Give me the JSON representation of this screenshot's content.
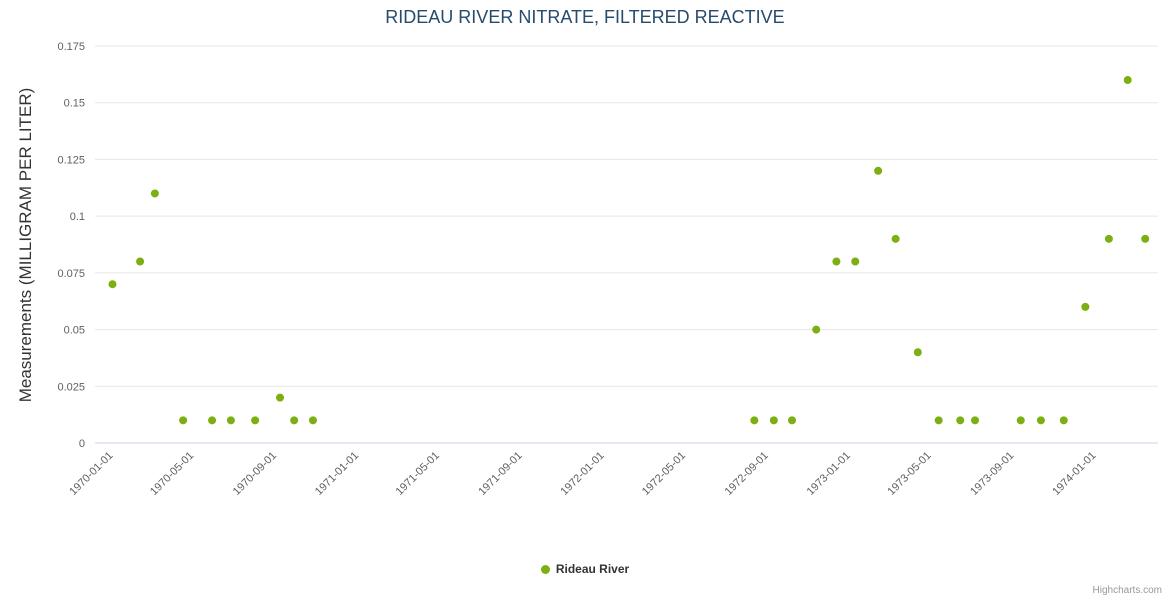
{
  "title": "RIDEAU RIVER NITRATE, FILTERED REACTIVE",
  "credits": {
    "label": "Highcharts.com"
  },
  "legend": {
    "items": [
      {
        "label": "Rideau River",
        "color": "#7cb012"
      }
    ]
  },
  "chart_data": {
    "type": "scatter",
    "title": "RIDEAU RIVER NITRATE, FILTERED REACTIVE",
    "xlabel": "",
    "ylabel": "Measurements (MILLIGRAM PER LITER)",
    "ylim": [
      0,
      0.175
    ],
    "y_ticks": [
      0,
      0.025,
      0.05,
      0.075,
      0.1,
      0.125,
      0.15,
      0.175
    ],
    "x_ticks": [
      "1970-01-01",
      "1970-05-01",
      "1970-09-01",
      "1971-01-01",
      "1971-05-01",
      "1971-09-01",
      "1972-01-01",
      "1972-05-01",
      "1972-09-01",
      "1973-01-01",
      "1973-05-01",
      "1973-09-01",
      "1974-01-01"
    ],
    "xlim": [
      "1969-12-09",
      "1974-04-07"
    ],
    "grid": true,
    "legend_position": "bottom",
    "series": [
      {
        "name": "Rideau River",
        "color": "#7cb012",
        "points": [
          {
            "x": "1970-01-04",
            "y": 0.07
          },
          {
            "x": "1970-02-14",
            "y": 0.08
          },
          {
            "x": "1970-03-08",
            "y": 0.11
          },
          {
            "x": "1970-04-19",
            "y": 0.01
          },
          {
            "x": "1970-06-01",
            "y": 0.01
          },
          {
            "x": "1970-06-29",
            "y": 0.01
          },
          {
            "x": "1970-08-04",
            "y": 0.01
          },
          {
            "x": "1970-09-10",
            "y": 0.02
          },
          {
            "x": "1970-10-01",
            "y": 0.01
          },
          {
            "x": "1970-10-29",
            "y": 0.01
          },
          {
            "x": "1972-08-15",
            "y": 0.01
          },
          {
            "x": "1972-09-13",
            "y": 0.01
          },
          {
            "x": "1972-10-10",
            "y": 0.01
          },
          {
            "x": "1972-11-15",
            "y": 0.05
          },
          {
            "x": "1972-12-15",
            "y": 0.08
          },
          {
            "x": "1973-01-12",
            "y": 0.08
          },
          {
            "x": "1973-02-15",
            "y": 0.12
          },
          {
            "x": "1973-03-13",
            "y": 0.09
          },
          {
            "x": "1973-04-15",
            "y": 0.04
          },
          {
            "x": "1973-05-16",
            "y": 0.01
          },
          {
            "x": "1973-06-17",
            "y": 0.01
          },
          {
            "x": "1973-07-09",
            "y": 0.01
          },
          {
            "x": "1973-09-15",
            "y": 0.01
          },
          {
            "x": "1973-10-15",
            "y": 0.01
          },
          {
            "x": "1973-11-18",
            "y": 0.01
          },
          {
            "x": "1973-12-20",
            "y": 0.06
          },
          {
            "x": "1974-01-24",
            "y": 0.09
          },
          {
            "x": "1974-02-21",
            "y": 0.16
          },
          {
            "x": "1974-03-19",
            "y": 0.09
          }
        ]
      }
    ]
  }
}
